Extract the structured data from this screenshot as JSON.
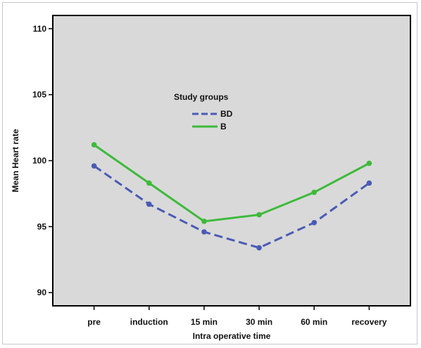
{
  "chart_data": {
    "type": "line",
    "title": "",
    "xlabel": "Intra operative time",
    "ylabel": "Mean Heart rate",
    "categories": [
      "pre",
      "induction",
      "15 min",
      "30 min",
      "60 min",
      "recovery"
    ],
    "ylim": [
      89,
      111
    ],
    "yticks": [
      90,
      95,
      100,
      105,
      110
    ],
    "grid": false,
    "legend": {
      "title": "Study groups",
      "placement": "upper-center"
    },
    "series": [
      {
        "name": "BD",
        "color": "#4a5bb5",
        "dash": "dashed",
        "values": [
          99.6,
          96.7,
          94.6,
          93.4,
          95.3,
          98.3
        ]
      },
      {
        "name": "B",
        "color": "#3dba3a",
        "dash": "solid",
        "values": [
          101.2,
          98.3,
          95.4,
          95.9,
          97.6,
          99.8
        ]
      }
    ]
  }
}
